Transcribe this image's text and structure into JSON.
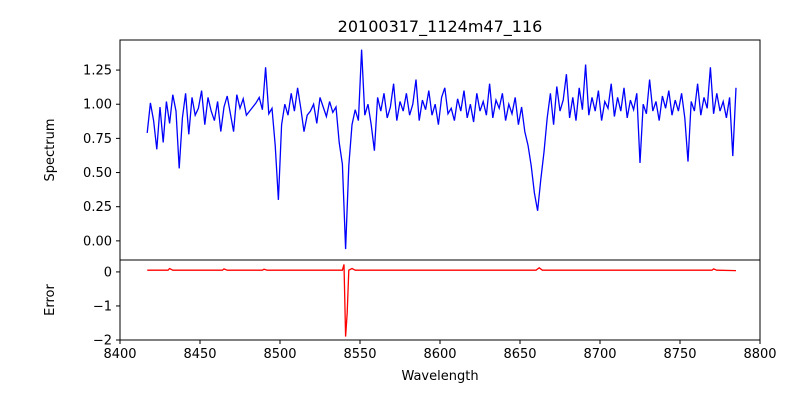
{
  "chart_data": {
    "type": "line",
    "title": "20100317_1124m47_116",
    "xlabel": "Wavelength",
    "xlim": [
      8400,
      8800
    ],
    "xticks": [
      "8400",
      "8450",
      "8500",
      "8550",
      "8600",
      "8650",
      "8700",
      "8750",
      "8800"
    ],
    "panels": [
      {
        "name": "spectrum",
        "ylabel": "Spectrum",
        "ylim": [
          -0.14,
          1.47
        ],
        "yticks": [
          "0.00",
          "0.25",
          "0.50",
          "0.75",
          "1.00",
          "1.25"
        ],
        "color": "#0000ff",
        "x_start": 8417,
        "x_step": 2,
        "values": [
          0.79,
          1.01,
          0.88,
          0.67,
          0.98,
          0.72,
          1.02,
          0.86,
          1.07,
          0.95,
          0.53,
          0.9,
          1.08,
          0.78,
          1.05,
          0.92,
          0.97,
          1.1,
          0.85,
          1.05,
          0.95,
          0.88,
          1.02,
          0.8,
          0.98,
          1.06,
          0.93,
          0.8,
          1.07,
          0.97,
          1.04,
          0.92,
          0.95,
          0.98,
          1.01,
          1.05,
          0.96,
          1.27,
          0.93,
          0.97,
          0.7,
          0.3,
          0.85,
          1.0,
          0.92,
          1.08,
          0.95,
          1.12,
          0.97,
          0.8,
          0.92,
          0.95,
          1.0,
          0.86,
          1.05,
          0.98,
          0.91,
          1.02,
          0.94,
          0.98,
          0.72,
          0.56,
          -0.06,
          0.55,
          0.85,
          0.96,
          0.88,
          1.4,
          0.92,
          1.0,
          0.85,
          0.66,
          1.05,
          0.95,
          1.08,
          0.9,
          0.98,
          1.15,
          0.88,
          1.02,
          0.95,
          1.08,
          0.92,
          1.0,
          1.18,
          0.88,
          1.03,
          0.96,
          1.1,
          0.92,
          1.0,
          0.85,
          1.05,
          1.12,
          0.93,
          0.97,
          0.88,
          1.04,
          0.95,
          1.1,
          0.9,
          1.0,
          0.87,
          1.08,
          0.95,
          1.02,
          0.92,
          1.15,
          0.9,
          1.03,
          0.97,
          1.08,
          0.88,
          1.0,
          0.93,
          1.05,
          0.85,
          0.98,
          0.8,
          0.7,
          0.55,
          0.35,
          0.22,
          0.45,
          0.65,
          0.9,
          1.08,
          0.85,
          1.13,
          0.95,
          1.03,
          1.22,
          0.9,
          1.05,
          0.88,
          1.12,
          0.96,
          1.29,
          0.92,
          1.05,
          0.95,
          1.1,
          0.88,
          1.02,
          0.97,
          1.15,
          0.91,
          1.05,
          0.95,
          1.12,
          0.9,
          1.03,
          0.96,
          1.08,
          0.57,
          1.0,
          0.93,
          1.18,
          0.95,
          1.02,
          0.88,
          1.06,
          0.97,
          1.1,
          0.92,
          1.03,
          0.95,
          1.08,
          0.9,
          0.58,
          1.02,
          0.95,
          1.15,
          0.92,
          1.05,
          0.97,
          1.27,
          0.93,
          1.08,
          0.95,
          1.02,
          0.9,
          1.05,
          0.62,
          1.12
        ]
      },
      {
        "name": "error",
        "ylabel": "Error",
        "ylim": [
          -2,
          0.35
        ],
        "yticks": [
          "0",
          "−1",
          "−2"
        ],
        "ytick_values": [
          0,
          -1,
          -2
        ],
        "color": "#ff0000",
        "x": [
          8417,
          8430,
          8431,
          8433,
          8464,
          8465,
          8467,
          8489,
          8490,
          8492,
          8539,
          8540,
          8541,
          8542,
          8543,
          8545,
          8547,
          8660,
          8662,
          8664,
          8770,
          8771,
          8773,
          8785
        ],
        "values": [
          0.05,
          0.05,
          0.1,
          0.05,
          0.05,
          0.09,
          0.05,
          0.05,
          0.08,
          0.05,
          0.05,
          0.22,
          -1.9,
          -1.2,
          0.05,
          0.1,
          0.05,
          0.05,
          0.12,
          0.05,
          0.05,
          0.09,
          0.05,
          0.04
        ]
      }
    ]
  }
}
